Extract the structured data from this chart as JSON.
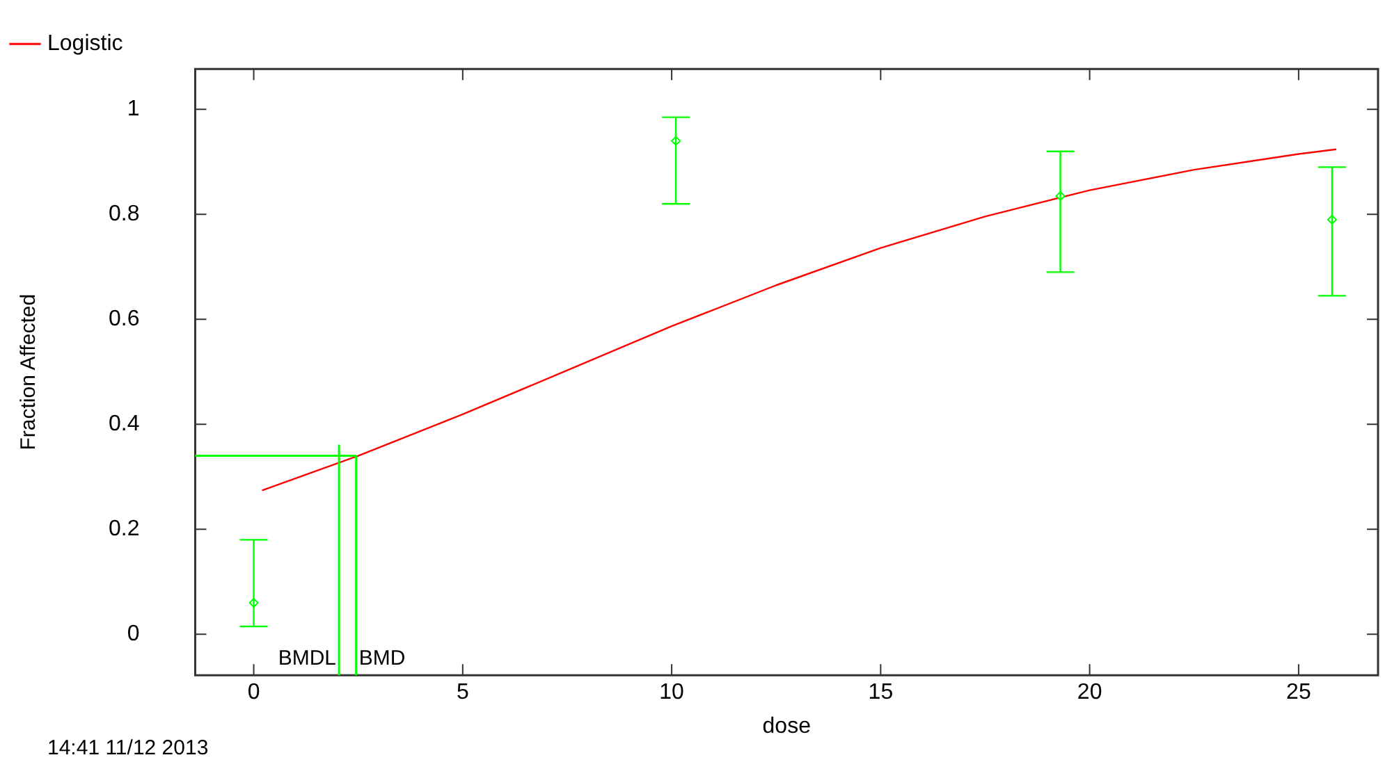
{
  "chart_data": {
    "type": "scatter",
    "xlabel": "dose",
    "ylabel": "Fraction Affected",
    "xlim": [
      -1.4,
      26.9
    ],
    "xticks": [
      0,
      5,
      10,
      15,
      20,
      25
    ],
    "ylim": [
      -0.078,
      1.077
    ],
    "yticks": [
      0,
      0.2,
      0.4,
      0.6,
      0.8,
      1
    ],
    "grid": false,
    "legend": "top",
    "marker": "diamond",
    "series": [
      {
        "type": "scatter",
        "color": "#00ff00",
        "x": [
          0,
          10.1,
          19.3,
          25.8
        ],
        "values": [
          0.06,
          0.94,
          0.835,
          0.79
        ],
        "errors": [
          [
            0.015,
            0.18
          ],
          [
            0.82,
            0.985
          ],
          [
            0.69,
            0.92
          ],
          [
            0.645,
            0.89
          ]
        ]
      },
      {
        "type": "line",
        "name": "Logistic",
        "color": "#ff0000",
        "marker": "none",
        "line_style": "solid",
        "x": [
          0.2,
          2.5,
          5,
          7.5,
          10,
          12.5,
          15,
          17.5,
          20,
          22.5,
          25,
          25.9
        ],
        "values": [
          0.274,
          0.34,
          0.419,
          0.503,
          0.587,
          0.665,
          0.736,
          0.796,
          0.846,
          0.885,
          0.915,
          0.924
        ]
      }
    ],
    "ref_lines": [
      {
        "axis": "x",
        "value": 2.04,
        "label": "BMDL",
        "color": "#00ff00"
      },
      {
        "axis": "x",
        "value": 2.45,
        "label": "BMD",
        "color": "#00ff00"
      },
      {
        "axis": "y",
        "value": 0.34,
        "label": null,
        "color": "#00ff00"
      }
    ],
    "annotations": [
      "14:41 11/12 2013"
    ]
  }
}
